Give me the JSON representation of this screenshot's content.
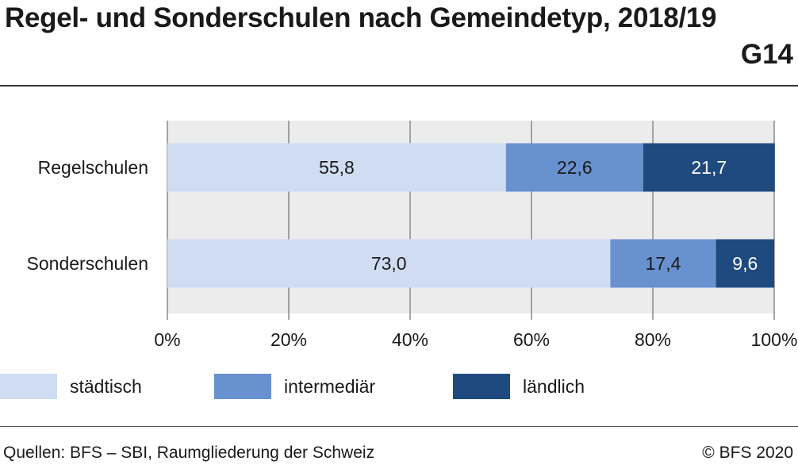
{
  "header": {
    "title": "Regel- und Sonderschulen nach Gemeindetyp, 2018/19",
    "figure_id": "G14"
  },
  "footer": {
    "source": "Quellen: BFS – SBI, Raumgliederung der Schweiz",
    "copyright": "© BFS 2020"
  },
  "chart_data": {
    "type": "bar",
    "orientation": "horizontal",
    "stacked": true,
    "categories": [
      "Regelschulen",
      "Sonderschulen"
    ],
    "series": [
      {
        "name": "städtisch",
        "values": [
          55.8,
          73.0
        ],
        "labels": [
          "55,8",
          "73,0"
        ],
        "color": "#cfdcf2"
      },
      {
        "name": "intermediär",
        "values": [
          22.6,
          17.4
        ],
        "labels": [
          "22,6",
          "17,4"
        ],
        "color": "#6891cf"
      },
      {
        "name": "ländlich",
        "values": [
          21.7,
          9.6
        ],
        "labels": [
          "21,7",
          "9,6"
        ],
        "color": "#1f4a7f"
      }
    ],
    "xlim": [
      0,
      100
    ],
    "xticks": [
      "0%",
      "20%",
      "40%",
      "60%",
      "80%",
      "100%"
    ],
    "grid": true,
    "legend_position": "bottom"
  }
}
